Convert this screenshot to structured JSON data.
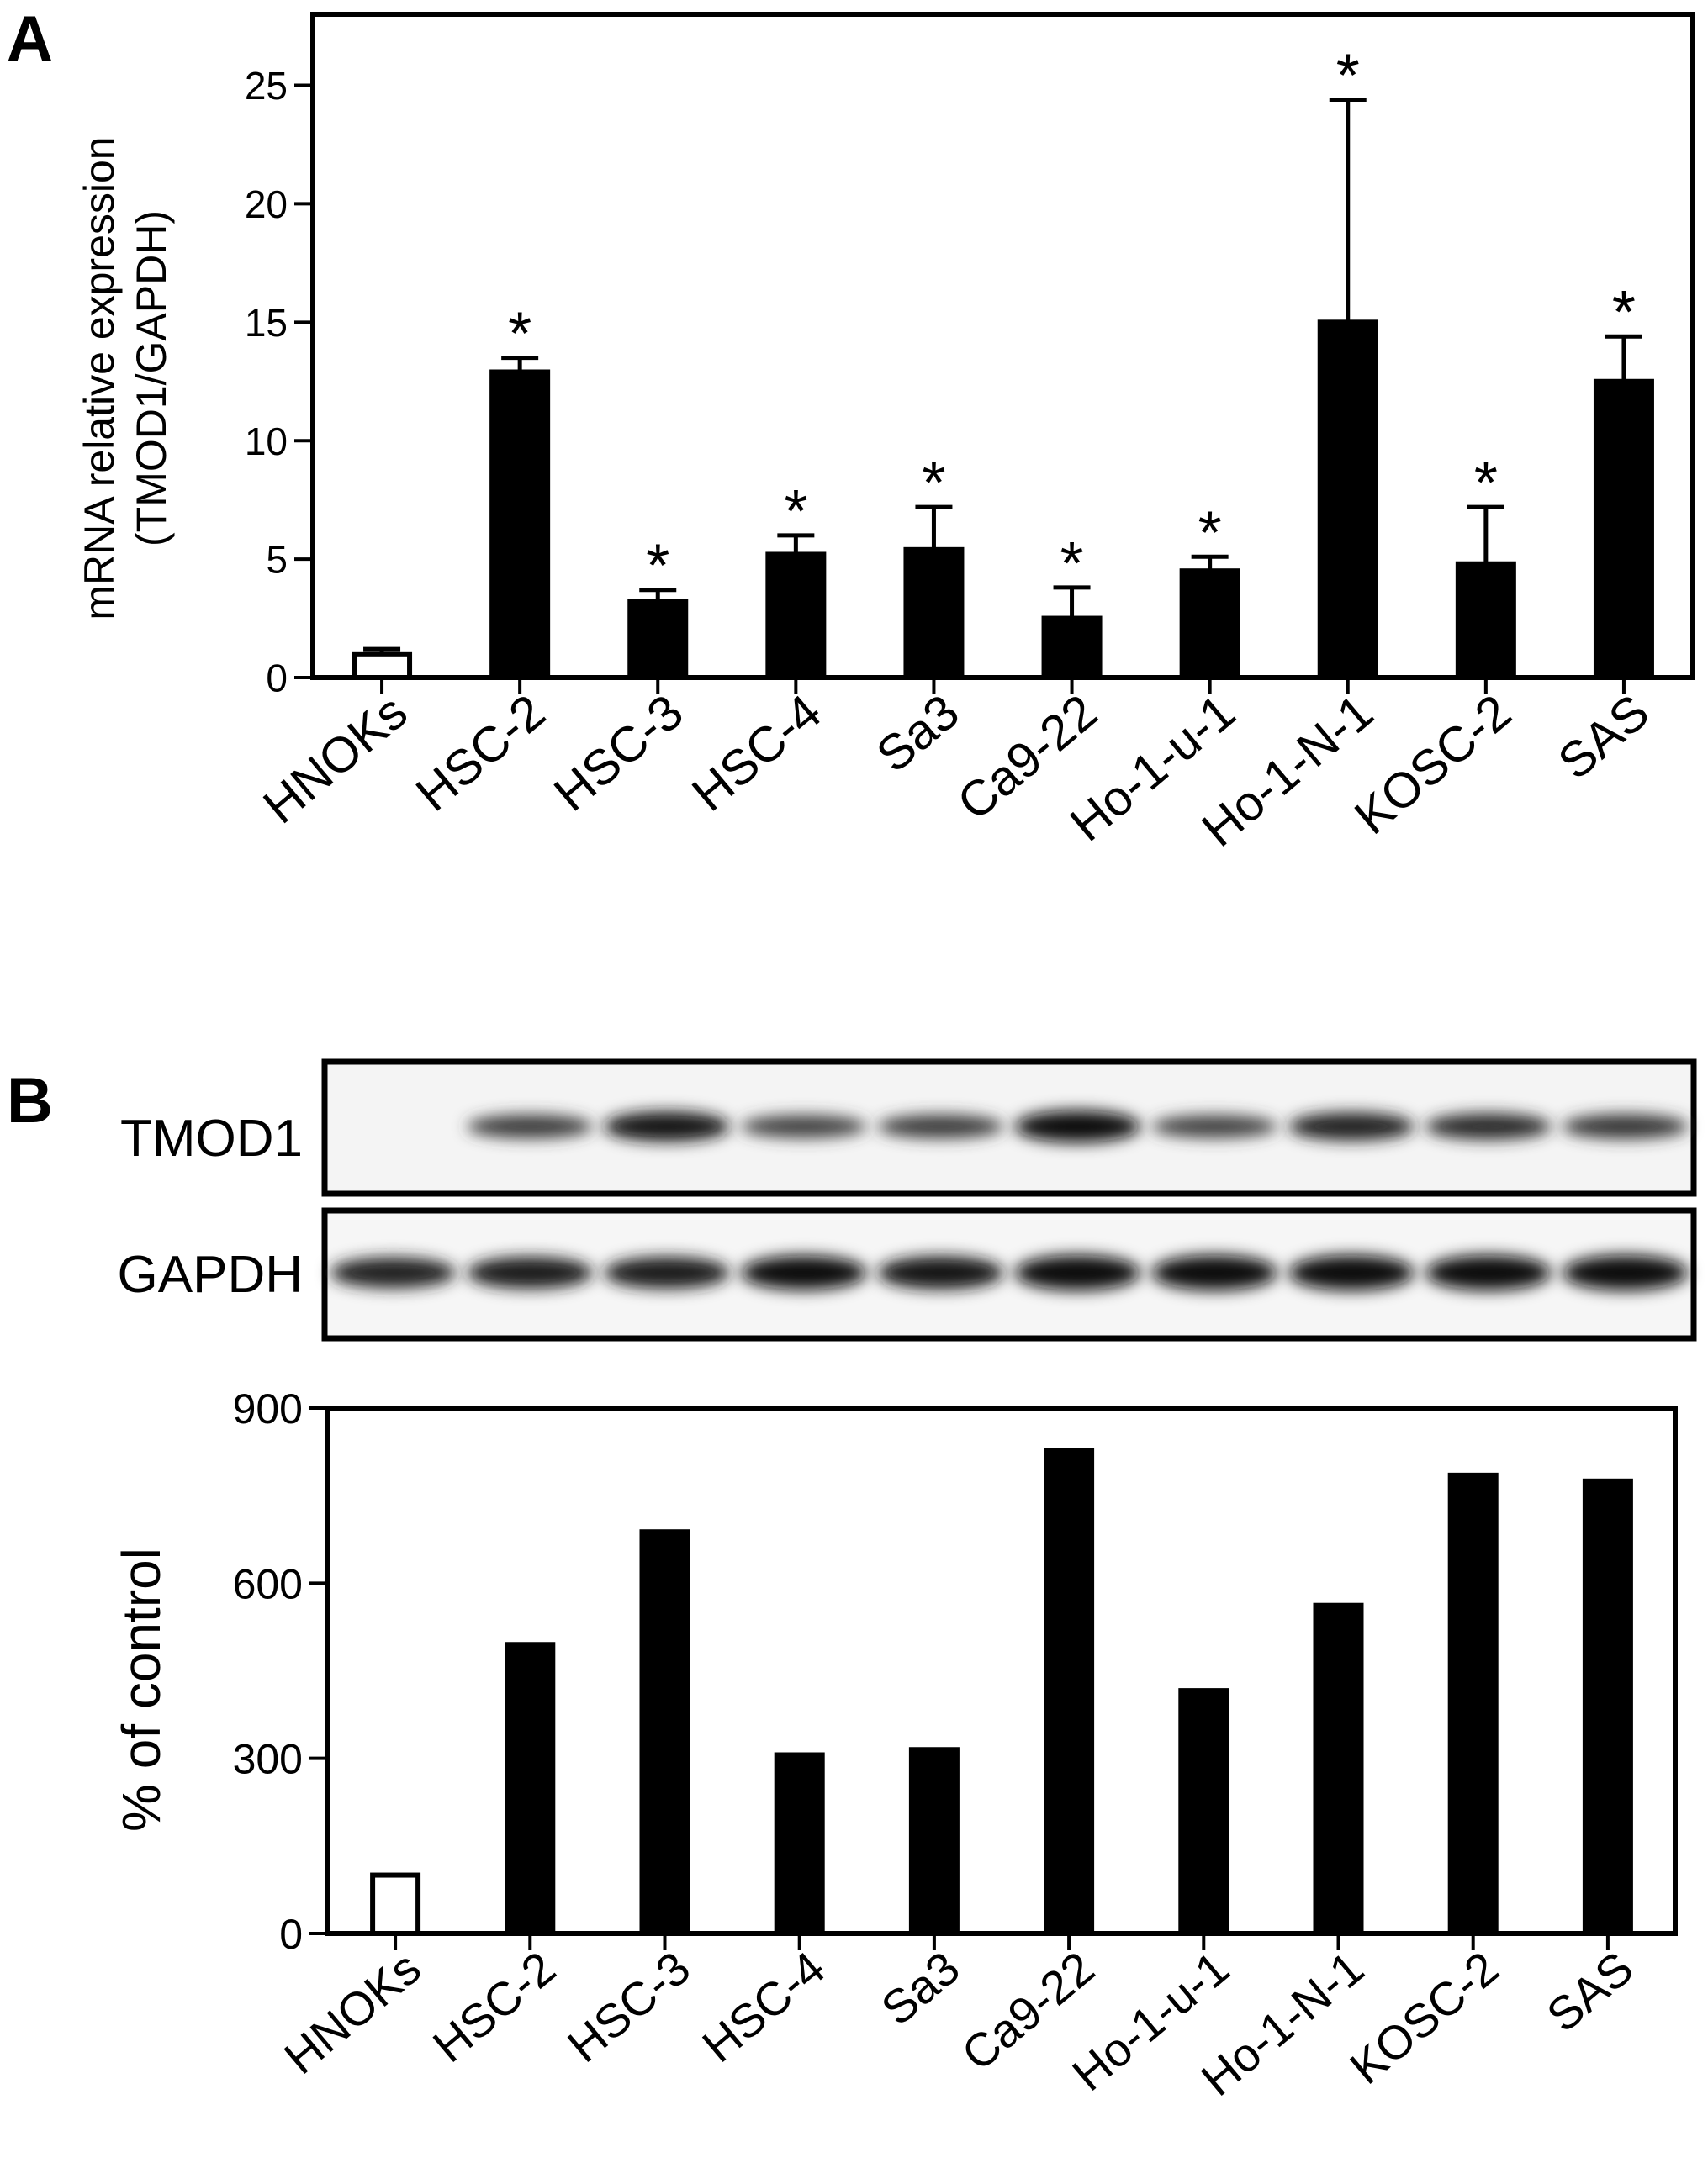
{
  "panels": {
    "A": {
      "letter": "A"
    },
    "B": {
      "letter": "B"
    }
  },
  "colors": {
    "control_fill": "#ffffff",
    "tumor_fill": "#000000",
    "axis": "#000000"
  },
  "chart_data": [
    {
      "id": "A",
      "type": "bar",
      "ylabel_lines": [
        "mRNA relative expression",
        "(TMOD1/GAPDH)"
      ],
      "xlabel": "",
      "categories": [
        "HNOKs",
        "HSC-2",
        "HSC-3",
        "HSC-4",
        "Sa3",
        "Ca9-22",
        "Ho-1-u-1",
        "Ho-1-N-1",
        "KOSC-2",
        "SAS"
      ],
      "values": [
        1.0,
        12.9,
        3.2,
        5.2,
        5.4,
        2.5,
        4.5,
        15.0,
        4.8,
        12.5
      ],
      "error_upper": [
        1.2,
        13.5,
        3.7,
        6.0,
        7.2,
        3.8,
        5.1,
        24.4,
        7.2,
        14.4
      ],
      "significance": [
        "",
        "*",
        "*",
        "*",
        "*",
        "*",
        "*",
        "*",
        "*",
        "*"
      ],
      "ylim": [
        0,
        28
      ],
      "yticks": [
        0,
        5,
        10,
        15,
        20,
        25
      ],
      "grid": false,
      "legend": "none"
    },
    {
      "id": "B",
      "type": "bar",
      "ylabel": "% of control",
      "xlabel": "",
      "categories": [
        "HNOKs",
        "HSC-2",
        "HSC-3",
        "HSC-4",
        "Sa3",
        "Ca9-22",
        "Ho-1-u-1",
        "Ho-1-N-1",
        "KOSC-2",
        "SAS"
      ],
      "values": [
        100,
        495,
        688,
        306,
        315,
        828,
        416,
        562,
        785,
        775
      ],
      "ylim": [
        0,
        900
      ],
      "yticks": [
        0,
        300,
        600,
        900
      ],
      "grid": false,
      "legend": "none"
    }
  ],
  "blot": {
    "rows": [
      {
        "label": "TMOD1",
        "bands": [
          0.0,
          0.55,
          0.9,
          0.5,
          0.55,
          1.0,
          0.5,
          0.8,
          0.7,
          0.6
        ]
      },
      {
        "label": "GAPDH",
        "bands": [
          0.8,
          0.85,
          0.85,
          0.95,
          0.9,
          1.0,
          1.0,
          1.0,
          1.0,
          1.0
        ]
      }
    ]
  }
}
